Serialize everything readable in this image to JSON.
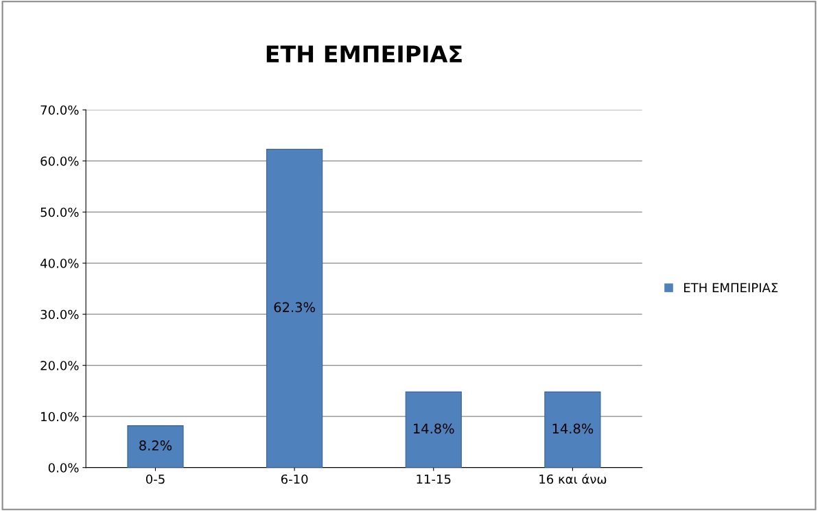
{
  "chart_data": {
    "type": "bar",
    "title": "ΕΤΗ ΕΜΠΕΙΡΙΑΣ",
    "categories": [
      "0-5",
      "6-10",
      "11-15",
      "16 και άνω"
    ],
    "series": [
      {
        "name": "ΕΤΗ ΕΜΠΕΙΡΙΑΣ",
        "color": "#4f81bd",
        "values": [
          8.2,
          62.3,
          14.8,
          14.8
        ],
        "value_labels": [
          "8.2%",
          "62.3%",
          "14.8%",
          "14.8%"
        ]
      }
    ],
    "ylim": [
      0,
      70
    ],
    "yticks": [
      {
        "value": 0,
        "label": "0.0%"
      },
      {
        "value": 10,
        "label": "10.0%"
      },
      {
        "value": 20,
        "label": "20.0%"
      },
      {
        "value": 30,
        "label": "30.0%"
      },
      {
        "value": 40,
        "label": "40.0%"
      },
      {
        "value": 50,
        "label": "50.0%"
      },
      {
        "value": 60,
        "label": "60.0%"
      },
      {
        "value": 70,
        "label": "70.0%"
      }
    ],
    "grid": "y",
    "legend": "right"
  }
}
